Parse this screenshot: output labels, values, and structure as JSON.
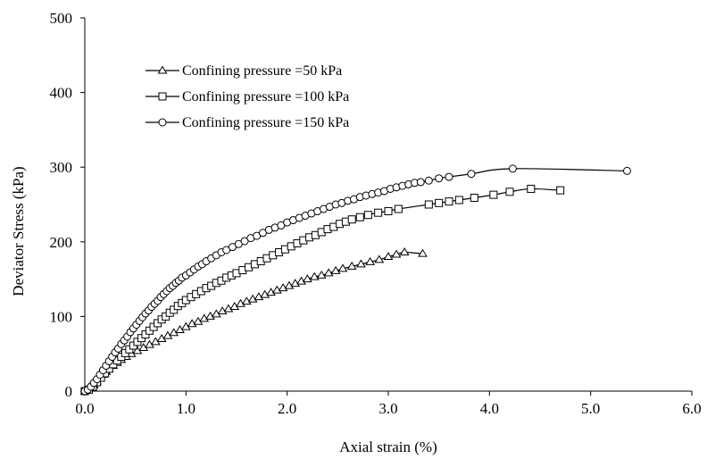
{
  "chart_data": {
    "type": "line",
    "xlabel": "Axial strain (%)",
    "ylabel": "Deviator Stress (kPa)",
    "xlim": [
      0,
      6
    ],
    "ylim": [
      0,
      500
    ],
    "xticks": [
      "0.0",
      "1.0",
      "2.0",
      "3.0",
      "4.0",
      "5.0",
      "6.0"
    ],
    "yticks": [
      "0",
      "100",
      "200",
      "300",
      "400",
      "500"
    ],
    "xtick_values": [
      0,
      1,
      2,
      3,
      4,
      5,
      6
    ],
    "ytick_values": [
      0,
      100,
      200,
      300,
      400,
      500
    ],
    "grid": false,
    "legend_position": "top-left",
    "series": [
      {
        "name": "Confining pressure =50 kPa",
        "marker": "triangle",
        "points": [
          [
            0,
            0
          ],
          [
            0.03,
            1
          ],
          [
            0.06,
            4
          ],
          [
            0.09,
            8
          ],
          [
            0.12,
            13
          ],
          [
            0.15,
            18
          ],
          [
            0.18,
            22
          ],
          [
            0.21,
            26
          ],
          [
            0.24,
            30
          ],
          [
            0.28,
            34
          ],
          [
            0.32,
            38
          ],
          [
            0.36,
            42
          ],
          [
            0.41,
            46
          ],
          [
            0.46,
            50
          ],
          [
            0.52,
            54
          ],
          [
            0.58,
            58
          ],
          [
            0.64,
            62
          ],
          [
            0.7,
            66
          ],
          [
            0.76,
            70
          ],
          [
            0.82,
            74
          ],
          [
            0.88,
            78
          ],
          [
            0.94,
            82
          ],
          [
            1.0,
            86
          ],
          [
            1.06,
            90
          ],
          [
            1.12,
            93
          ],
          [
            1.18,
            97
          ],
          [
            1.24,
            100
          ],
          [
            1.3,
            103
          ],
          [
            1.36,
            107
          ],
          [
            1.42,
            110
          ],
          [
            1.48,
            113
          ],
          [
            1.54,
            117
          ],
          [
            1.6,
            120
          ],
          [
            1.66,
            123
          ],
          [
            1.72,
            126
          ],
          [
            1.78,
            129
          ],
          [
            1.84,
            132
          ],
          [
            1.9,
            135
          ],
          [
            1.96,
            138
          ],
          [
            2.02,
            141
          ],
          [
            2.08,
            144
          ],
          [
            2.14,
            147
          ],
          [
            2.2,
            150
          ],
          [
            2.27,
            153
          ],
          [
            2.34,
            155
          ],
          [
            2.41,
            158
          ],
          [
            2.48,
            161
          ],
          [
            2.55,
            164
          ],
          [
            2.64,
            167
          ],
          [
            2.73,
            170
          ],
          [
            2.82,
            173
          ],
          [
            2.91,
            176
          ],
          [
            3.0,
            180
          ],
          [
            3.08,
            183
          ],
          [
            3.16,
            186
          ],
          [
            3.34,
            184
          ]
        ]
      },
      {
        "name": "Confining pressure =100 kPa",
        "marker": "square",
        "points": [
          [
            0,
            0
          ],
          [
            0.04,
            2
          ],
          [
            0.08,
            6
          ],
          [
            0.12,
            12
          ],
          [
            0.16,
            18
          ],
          [
            0.2,
            24
          ],
          [
            0.24,
            30
          ],
          [
            0.28,
            36
          ],
          [
            0.32,
            41
          ],
          [
            0.36,
            46
          ],
          [
            0.4,
            51
          ],
          [
            0.44,
            56
          ],
          [
            0.48,
            61
          ],
          [
            0.52,
            66
          ],
          [
            0.56,
            71
          ],
          [
            0.6,
            76
          ],
          [
            0.64,
            81
          ],
          [
            0.68,
            86
          ],
          [
            0.72,
            91
          ],
          [
            0.76,
            96
          ],
          [
            0.8,
            100
          ],
          [
            0.84,
            105
          ],
          [
            0.88,
            109
          ],
          [
            0.92,
            114
          ],
          [
            0.96,
            118
          ],
          [
            1.0,
            122
          ],
          [
            1.05,
            126
          ],
          [
            1.1,
            130
          ],
          [
            1.15,
            134
          ],
          [
            1.2,
            138
          ],
          [
            1.25,
            141
          ],
          [
            1.3,
            145
          ],
          [
            1.35,
            148
          ],
          [
            1.4,
            152
          ],
          [
            1.45,
            155
          ],
          [
            1.5,
            158
          ],
          [
            1.56,
            162
          ],
          [
            1.62,
            166
          ],
          [
            1.68,
            170
          ],
          [
            1.74,
            174
          ],
          [
            1.8,
            178
          ],
          [
            1.86,
            182
          ],
          [
            1.92,
            186
          ],
          [
            1.98,
            190
          ],
          [
            2.04,
            194
          ],
          [
            2.1,
            198
          ],
          [
            2.16,
            202
          ],
          [
            2.22,
            206
          ],
          [
            2.28,
            209
          ],
          [
            2.34,
            213
          ],
          [
            2.4,
            217
          ],
          [
            2.46,
            220
          ],
          [
            2.52,
            224
          ],
          [
            2.58,
            227
          ],
          [
            2.64,
            230
          ],
          [
            2.72,
            233
          ],
          [
            2.8,
            236
          ],
          [
            2.9,
            239
          ],
          [
            3.0,
            241
          ],
          [
            3.1,
            244
          ],
          [
            3.4,
            250
          ],
          [
            3.5,
            252
          ],
          [
            3.6,
            254
          ],
          [
            3.7,
            256
          ],
          [
            3.85,
            259
          ],
          [
            4.04,
            263
          ],
          [
            4.2,
            267
          ],
          [
            4.41,
            271
          ],
          [
            4.7,
            269
          ]
        ]
      },
      {
        "name": "Confining pressure =150 kPa",
        "marker": "circle",
        "points": [
          [
            0,
            0
          ],
          [
            0.03,
            2
          ],
          [
            0.06,
            6
          ],
          [
            0.09,
            11
          ],
          [
            0.12,
            16
          ],
          [
            0.15,
            22
          ],
          [
            0.18,
            28
          ],
          [
            0.21,
            34
          ],
          [
            0.24,
            40
          ],
          [
            0.27,
            46
          ],
          [
            0.3,
            52
          ],
          [
            0.33,
            57
          ],
          [
            0.36,
            63
          ],
          [
            0.39,
            68
          ],
          [
            0.42,
            73
          ],
          [
            0.45,
            79
          ],
          [
            0.48,
            84
          ],
          [
            0.51,
            89
          ],
          [
            0.54,
            94
          ],
          [
            0.57,
            99
          ],
          [
            0.6,
            104
          ],
          [
            0.63,
            108
          ],
          [
            0.66,
            113
          ],
          [
            0.69,
            117
          ],
          [
            0.72,
            121
          ],
          [
            0.75,
            126
          ],
          [
            0.78,
            130
          ],
          [
            0.81,
            134
          ],
          [
            0.84,
            138
          ],
          [
            0.87,
            141
          ],
          [
            0.9,
            145
          ],
          [
            0.93,
            148
          ],
          [
            0.96,
            152
          ],
          [
            1.0,
            155
          ],
          [
            1.04,
            159
          ],
          [
            1.08,
            163
          ],
          [
            1.12,
            167
          ],
          [
            1.16,
            170
          ],
          [
            1.2,
            174
          ],
          [
            1.25,
            178
          ],
          [
            1.3,
            182
          ],
          [
            1.35,
            186
          ],
          [
            1.4,
            189
          ],
          [
            1.46,
            193
          ],
          [
            1.52,
            197
          ],
          [
            1.58,
            201
          ],
          [
            1.64,
            205
          ],
          [
            1.7,
            208
          ],
          [
            1.76,
            212
          ],
          [
            1.82,
            216
          ],
          [
            1.88,
            219
          ],
          [
            1.94,
            222
          ],
          [
            2.0,
            226
          ],
          [
            2.06,
            229
          ],
          [
            2.12,
            232
          ],
          [
            2.18,
            235
          ],
          [
            2.24,
            238
          ],
          [
            2.3,
            241
          ],
          [
            2.36,
            244
          ],
          [
            2.42,
            247
          ],
          [
            2.48,
            250
          ],
          [
            2.54,
            252
          ],
          [
            2.6,
            255
          ],
          [
            2.66,
            257
          ],
          [
            2.72,
            260
          ],
          [
            2.78,
            262
          ],
          [
            2.84,
            264
          ],
          [
            2.9,
            266
          ],
          [
            2.96,
            268
          ],
          [
            3.02,
            271
          ],
          [
            3.08,
            273
          ],
          [
            3.14,
            275
          ],
          [
            3.2,
            277
          ],
          [
            3.26,
            279
          ],
          [
            3.32,
            280
          ],
          [
            3.4,
            282
          ],
          [
            3.5,
            285
          ],
          [
            3.6,
            287
          ],
          [
            3.82,
            291
          ],
          [
            4.23,
            298
          ],
          [
            5.36,
            295
          ]
        ]
      }
    ]
  }
}
